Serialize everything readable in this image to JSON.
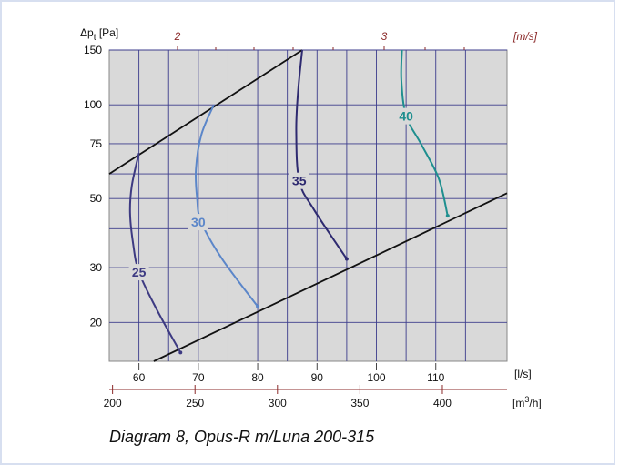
{
  "chart_data": {
    "type": "line",
    "title": "",
    "caption": "Diagram 8, Opus-R m/Luna 200-315",
    "y_axis": {
      "label_main": "Δp",
      "label_sub": "t",
      "label_unit": " [Pa]",
      "scale": "log",
      "range": [
        15,
        150
      ],
      "ticks": [
        20,
        30,
        50,
        75,
        100,
        150
      ],
      "gridlines": [
        20,
        30,
        40,
        50,
        60,
        75,
        100,
        150
      ]
    },
    "x_axis_flow": {
      "unit_label": "[l/s]",
      "range": [
        55,
        122
      ],
      "ticks": [
        60,
        70,
        80,
        90,
        100,
        110
      ],
      "gridlines": [
        60,
        65,
        70,
        75,
        80,
        85,
        90,
        95,
        100,
        105,
        110,
        115
      ]
    },
    "x_axis_volume": {
      "unit_main": "[m",
      "unit_sup": "3",
      "unit_end": "/h]",
      "ticks": [
        200,
        250,
        300,
        350,
        400
      ]
    },
    "x_axis_velocity": {
      "unit_label": "[m/s]",
      "ticks": [
        2,
        3
      ]
    },
    "operating_limits": [
      {
        "points": [
          [
            55,
            60
          ],
          [
            87.5,
            150
          ]
        ]
      },
      {
        "points": [
          [
            62.5,
            15
          ],
          [
            122,
            52
          ]
        ]
      }
    ],
    "series": [
      {
        "name": "25",
        "color": "#3d3a82",
        "label_at": [
          60,
          29
        ],
        "points": [
          [
            60,
            70
          ],
          [
            58.8,
            55
          ],
          [
            58.5,
            45
          ],
          [
            59,
            36
          ],
          [
            60,
            29
          ],
          [
            63,
            22
          ],
          [
            67,
            16
          ]
        ]
      },
      {
        "name": "30",
        "color": "#5b86c9",
        "label_at": [
          70,
          42
        ],
        "points": [
          [
            72.6,
            100
          ],
          [
            70.5,
            80
          ],
          [
            69.6,
            62
          ],
          [
            69.8,
            50
          ],
          [
            70.5,
            42
          ],
          [
            74,
            32
          ],
          [
            80,
            22.5
          ]
        ]
      },
      {
        "name": "35",
        "color": "#2e2a70",
        "label_at": [
          87,
          57
        ],
        "points": [
          [
            87.5,
            150
          ],
          [
            86.8,
            110
          ],
          [
            86.5,
            82
          ],
          [
            87,
            57
          ],
          [
            89.5,
            46
          ],
          [
            95,
            32
          ]
        ]
      },
      {
        "name": "40",
        "color": "#1e8f8f",
        "label_at": [
          105,
          92
        ],
        "points": [
          [
            104.3,
            150
          ],
          [
            104.2,
            120
          ],
          [
            105,
            92
          ],
          [
            107.5,
            75
          ],
          [
            110.5,
            58
          ],
          [
            112,
            44
          ]
        ]
      }
    ],
    "grid": true,
    "colors": {
      "plot_bg": "#d9d9d9",
      "grid": "#3c3c8c",
      "limit_line": "#111111",
      "secondary_axis": "#8b2a2a"
    }
  }
}
